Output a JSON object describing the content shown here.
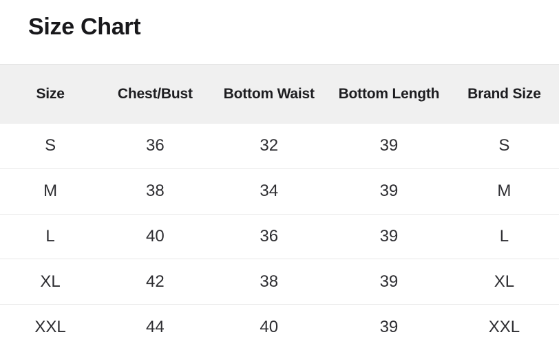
{
  "page": {
    "title": "Size Chart"
  },
  "colors": {
    "background": "#ffffff",
    "header_background": "#f0f0f0",
    "header_top_border": "#e3e3e3",
    "row_divider": "#e7e7e7",
    "heading_text": "#18181b",
    "header_text": "#1d1d20",
    "body_text": "#2e2e32"
  },
  "table": {
    "headers": [
      "Size",
      "Chest/Bust",
      "Bottom Waist",
      "Bottom Length",
      "Brand Size"
    ],
    "rows": [
      [
        "S",
        "36",
        "32",
        "39",
        "S"
      ],
      [
        "M",
        "38",
        "34",
        "39",
        "M"
      ],
      [
        "L",
        "40",
        "36",
        "39",
        "L"
      ],
      [
        "XL",
        "42",
        "38",
        "39",
        "XL"
      ],
      [
        "XXL",
        "44",
        "40",
        "39",
        "XXL"
      ]
    ]
  }
}
